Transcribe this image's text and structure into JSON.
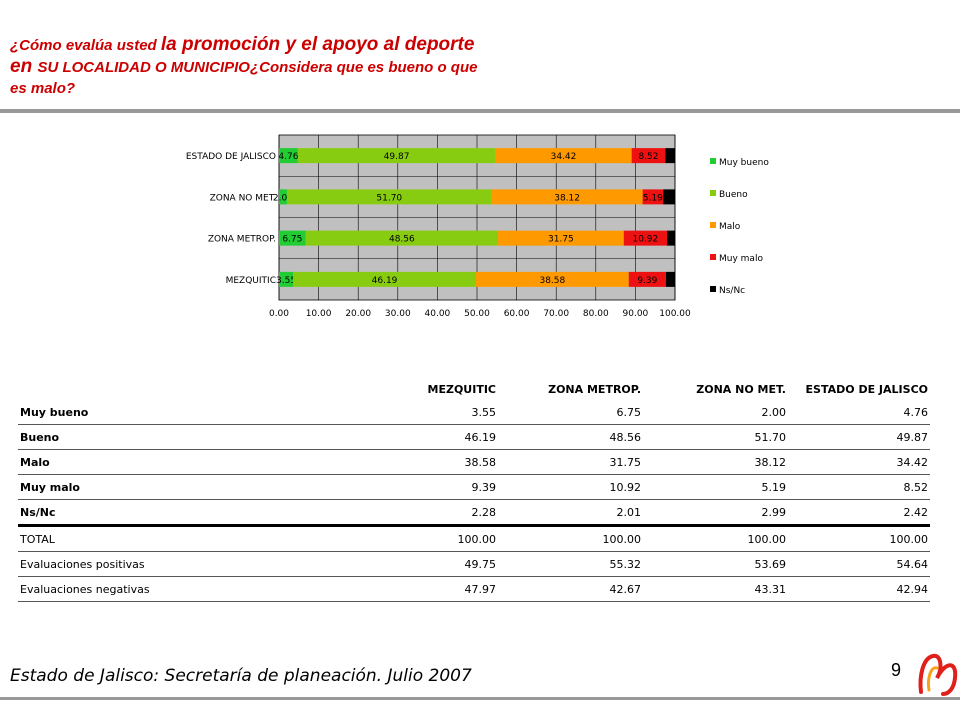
{
  "header": {
    "title_part1": "¿Cómo evalúa usted ",
    "title_part2": "la promoción y el apoyo al deporte en ",
    "title_part3": "SU LOCALIDAD O MUNICIPIO¿Considera que es bueno o que es malo?"
  },
  "chart_data": {
    "type": "bar",
    "orientation": "horizontal",
    "stacked": true,
    "categories": [
      "ESTADO DE JALISCO",
      "ZONA NO MET.",
      "ZONA METROP.",
      "MEZQUITIC"
    ],
    "series": [
      {
        "name": "Muy bueno",
        "color": "#22cc33",
        "values": [
          4.76,
          2.0,
          6.75,
          3.55
        ]
      },
      {
        "name": "Bueno",
        "color": "#88cc11",
        "values": [
          49.87,
          51.7,
          48.56,
          46.19
        ]
      },
      {
        "name": "Malo",
        "color": "#ff9900",
        "values": [
          34.42,
          38.12,
          31.75,
          38.58
        ]
      },
      {
        "name": "Muy malo",
        "color": "#ee1111",
        "values": [
          8.52,
          5.19,
          10.92,
          9.39
        ]
      },
      {
        "name": "Ns/Nc",
        "color": "#000000",
        "values": [
          2.42,
          2.99,
          2.01,
          2.28
        ]
      }
    ],
    "xlim": [
      0,
      100
    ],
    "xticks": [
      "0.00",
      "10.00",
      "20.00",
      "30.00",
      "40.00",
      "50.00",
      "60.00",
      "70.00",
      "80.00",
      "90.00",
      "100.00"
    ],
    "grid": true,
    "legend_position": "right",
    "plot_background": "#c0c0c0"
  },
  "table": {
    "columns": [
      "",
      "MEZQUITIC",
      "ZONA METROP.",
      "ZONA NO MET.",
      "ESTADO DE JALISCO"
    ],
    "rows": [
      [
        "Muy bueno",
        "3.55",
        "6.75",
        "2.00",
        "4.76"
      ],
      [
        "Bueno",
        "46.19",
        "48.56",
        "51.70",
        "49.87"
      ],
      [
        "Malo",
        "38.58",
        "31.75",
        "38.12",
        "34.42"
      ],
      [
        "Muy malo",
        "9.39",
        "10.92",
        "5.19",
        "8.52"
      ],
      [
        "Ns/Nc",
        "2.28",
        "2.01",
        "2.99",
        "2.42"
      ],
      [
        "TOTAL",
        "100.00",
        "100.00",
        "100.00",
        "100.00"
      ],
      [
        "Evaluaciones positivas",
        "49.75",
        "55.32",
        "53.69",
        "54.64"
      ],
      [
        "Evaluaciones negativas",
        "47.97",
        "42.67",
        "43.31",
        "42.94"
      ]
    ]
  },
  "footer": {
    "source": "Estado de Jalisco: Secretaría de planeación. Julio 2007",
    "page_number": "9"
  },
  "colors": {
    "title": "#cc0000",
    "rule": "#999999"
  }
}
